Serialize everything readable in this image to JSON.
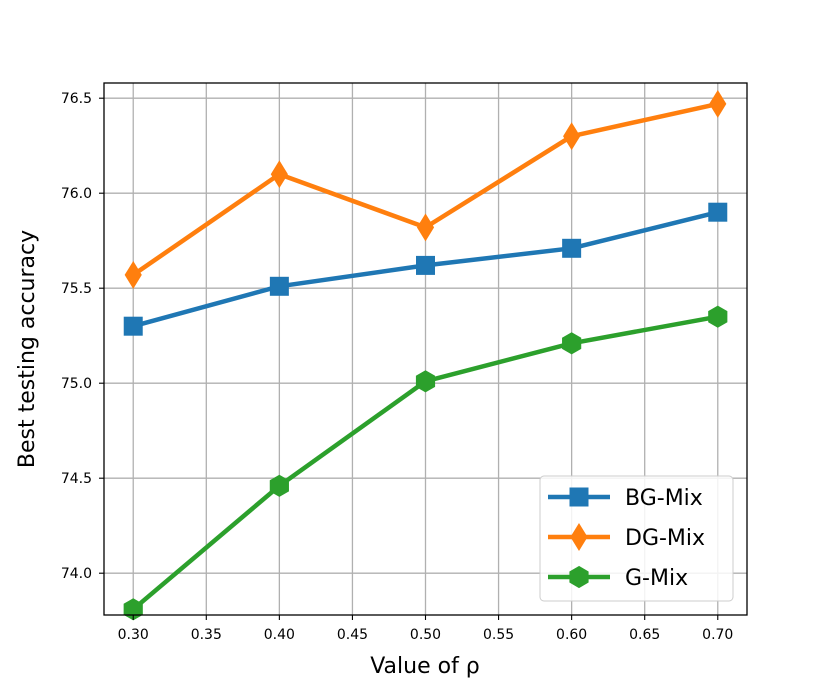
{
  "chart_data": {
    "type": "line",
    "title": "",
    "xlabel": "Value of ρ",
    "ylabel": "Best testing accuracy",
    "x": [
      0.3,
      0.4,
      0.5,
      0.6,
      0.7
    ],
    "xlim": [
      0.28,
      0.72
    ],
    "ylim": [
      73.78,
      76.58
    ],
    "x_ticks": [
      0.3,
      0.35,
      0.4,
      0.45,
      0.5,
      0.55,
      0.6,
      0.65,
      0.7
    ],
    "x_tick_labels": [
      "0.30",
      "0.35",
      "0.40",
      "0.45",
      "0.50",
      "0.55",
      "0.60",
      "0.65",
      "0.70"
    ],
    "y_ticks": [
      74.0,
      74.5,
      75.0,
      75.5,
      76.0,
      76.5
    ],
    "y_tick_labels": [
      "74.0",
      "74.5",
      "75.0",
      "75.5",
      "76.0",
      "76.5"
    ],
    "grid": true,
    "legend_position": "bottom-right",
    "series": [
      {
        "name": "BG-Mix",
        "marker": "square",
        "color": "#1f77b4",
        "values": [
          75.3,
          75.51,
          75.62,
          75.71,
          75.9
        ]
      },
      {
        "name": "DG-Mix",
        "marker": "diamond",
        "color": "#ff7f0e",
        "values": [
          75.57,
          76.1,
          75.82,
          76.3,
          76.47
        ]
      },
      {
        "name": "G-Mix",
        "marker": "hexagon",
        "color": "#2ca02c",
        "values": [
          73.81,
          74.46,
          75.01,
          75.21,
          75.35
        ]
      }
    ]
  }
}
